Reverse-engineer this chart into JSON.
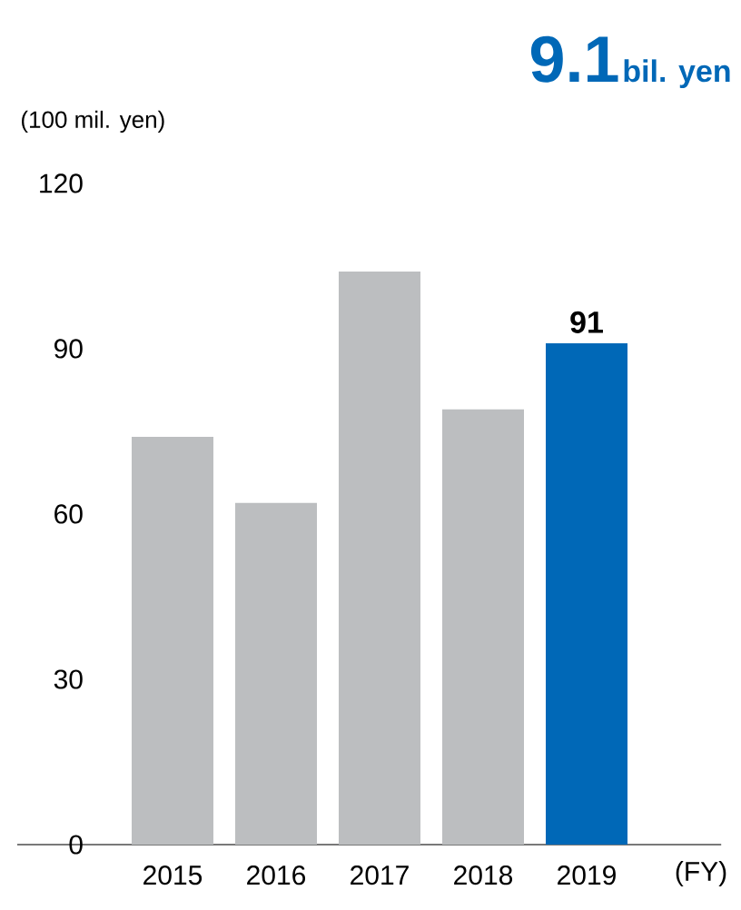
{
  "chart_data": {
    "type": "bar",
    "title": "9.1",
    "subtitle": "bil. yen",
    "ylabel": "(100 mil. yen)",
    "xlabel": "(FY)",
    "categories": [
      "2015",
      "2016",
      "2017",
      "2018",
      "2019"
    ],
    "values": [
      74,
      62,
      104,
      79,
      91
    ],
    "colors": [
      "#bcbec0",
      "#bcbec0",
      "#bcbec0",
      "#bcbec0",
      "#0068b7"
    ],
    "value_labels": [
      null,
      null,
      null,
      null,
      "91"
    ],
    "ylim": [
      0,
      120
    ],
    "yticks": [
      0,
      30,
      60,
      90,
      120
    ]
  }
}
